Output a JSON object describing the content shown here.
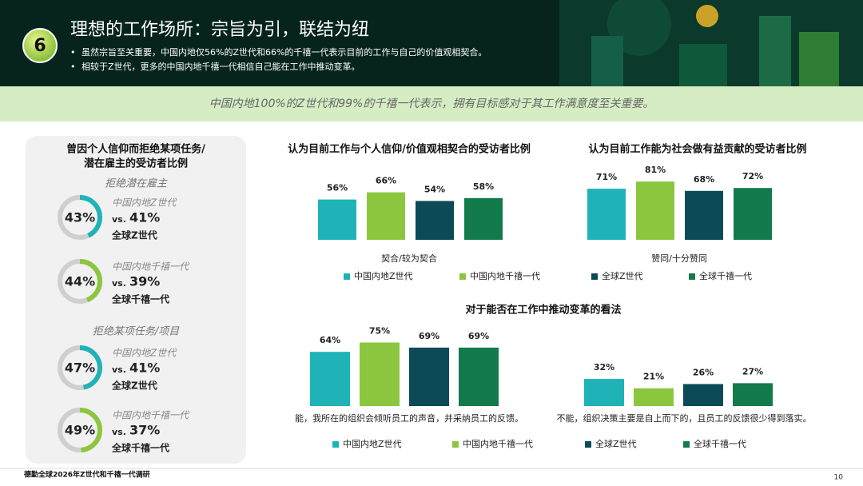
{
  "header": {
    "number": "6",
    "title": "理想的工作场所：宗旨为引，联结为纽",
    "bullets": [
      "虽然宗旨至关重要，中国内地仅56%的Z世代和66%的千禧一代表示目前的工作与自己的价值观相契合。",
      "相较于Z世代，更多的中国内地千禧一代相信自己能在工作中推动变革。"
    ]
  },
  "banner": "中国内地100%的Z世代和99%的千禧一代表示，拥有目标感对于其工作满意度至关重要。",
  "side_panel": {
    "title": [
      "曾因个人信仰而拒绝某项任务/",
      "潜在雇主的受访者比例"
    ],
    "sections": [
      {
        "heading": "拒绝潜在雇主",
        "items": [
          {
            "value": 43,
            "label": "43%",
            "group": "中国内地Z世代",
            "vs": "vs.",
            "compare": "41%",
            "compare_group": "全球Z世代",
            "color": "#1fb3b8"
          },
          {
            "value": 44,
            "label": "44%",
            "group": "中国内地千禧一代",
            "vs": "vs.",
            "compare": "39%",
            "compare_group": "全球千禧一代",
            "color": "#8cc63f"
          }
        ]
      },
      {
        "heading": "拒绝某项任务/项目",
        "items": [
          {
            "value": 47,
            "label": "47%",
            "group": "中国内地Z世代",
            "vs": "vs.",
            "compare": "41%",
            "compare_group": "全球Z世代",
            "color": "#1fb3b8"
          },
          {
            "value": 49,
            "label": "49%",
            "group": "中国内地千禧一代",
            "vs": "vs.",
            "compare": "37%",
            "compare_group": "全球千禧一代",
            "color": "#8cc63f"
          }
        ]
      }
    ]
  },
  "chart_data": [
    {
      "type": "bar",
      "title": "认为目前工作与个人信仰/价值观相契合的受访者比例",
      "categories": [
        "契合/较为契合"
      ],
      "series": [
        {
          "name": "中国内地Z世代",
          "color": "#1fb3b8",
          "values": [
            56
          ],
          "value_labels": [
            "56%"
          ]
        },
        {
          "name": "中国内地千禧一代",
          "color": "#8cc63f",
          "values": [
            66
          ],
          "value_labels": [
            "66%"
          ]
        },
        {
          "name": "全球Z世代",
          "color": "#0c4a57",
          "values": [
            54
          ],
          "value_labels": [
            "54%"
          ]
        },
        {
          "name": "全球千禧一代",
          "color": "#137a4b",
          "values": [
            58
          ],
          "value_labels": [
            "58%"
          ]
        }
      ]
    },
    {
      "type": "bar",
      "title": "认为目前工作能为社会做有益贡献的受访者比例",
      "categories": [
        "赞同/十分赞同"
      ],
      "series": [
        {
          "name": "中国内地Z世代",
          "color": "#1fb3b8",
          "values": [
            71
          ],
          "value_labels": [
            "71%"
          ]
        },
        {
          "name": "中国内地千禧一代",
          "color": "#8cc63f",
          "values": [
            81
          ],
          "value_labels": [
            "81%"
          ]
        },
        {
          "name": "全球Z世代",
          "color": "#0c4a57",
          "values": [
            68
          ],
          "value_labels": [
            "68%"
          ]
        },
        {
          "name": "全球千禧一代",
          "color": "#137a4b",
          "values": [
            72
          ],
          "value_labels": [
            "72%"
          ]
        }
      ]
    },
    {
      "type": "bar",
      "title": "对于能否在工作中推动变革的看法",
      "categories": [
        "能，我所在的组织会倾听员工的声音，并采纳员工的反馈。",
        "不能，组织决策主要是自上而下的，且员工的反馈很少得到落实。"
      ],
      "series": [
        {
          "name": "中国内地Z世代",
          "color": "#1fb3b8",
          "values": [
            64,
            32
          ],
          "value_labels": [
            "64%",
            "32%"
          ]
        },
        {
          "name": "中国内地千禧一代",
          "color": "#8cc63f",
          "values": [
            75,
            21
          ],
          "value_labels": [
            "75%",
            "21%"
          ]
        },
        {
          "name": "全球Z世代",
          "color": "#0c4a57",
          "values": [
            69,
            26
          ],
          "value_labels": [
            "69%",
            "26%"
          ]
        },
        {
          "name": "全球千禧一代",
          "color": "#137a4b",
          "values": [
            69,
            27
          ],
          "value_labels": [
            "69%",
            "27%"
          ]
        }
      ]
    }
  ],
  "footer": {
    "source": "德勤全球2026年Z世代和千禧一代调研",
    "page": "10"
  }
}
